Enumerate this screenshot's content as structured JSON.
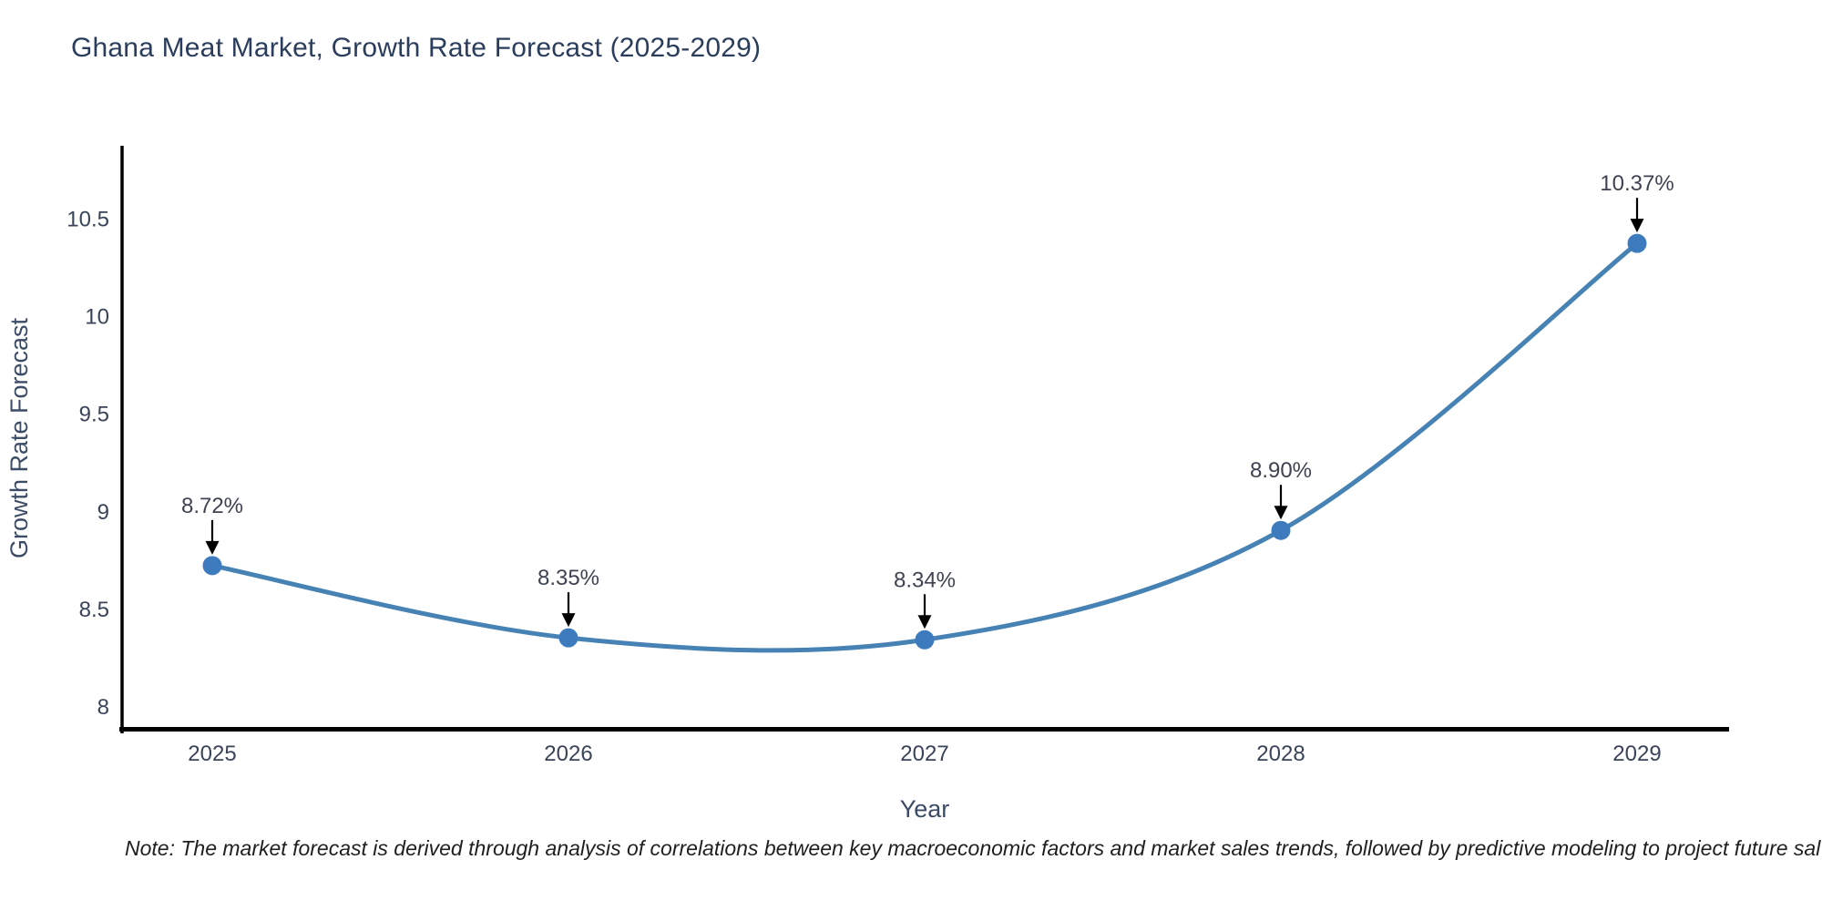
{
  "title": "Ghana Meat Market, Growth Rate Forecast (2025-2029)",
  "note": "Note: The market forecast is derived through analysis of correlations between key macroeconomic factors and market sales trends, followed by predictive modeling to project future sal",
  "chart_data": {
    "type": "line",
    "line_shape": "spline",
    "title": "Ghana Meat Market, Growth Rate Forecast (2025-2029)",
    "xlabel": "Year",
    "ylabel": "Growth Rate Forecast",
    "categories": [
      "2025",
      "2026",
      "2027",
      "2028",
      "2029"
    ],
    "series": [
      {
        "name": "Growth Rate Forecast",
        "values": [
          8.72,
          8.35,
          8.34,
          8.9,
          10.37
        ]
      }
    ],
    "point_labels": [
      "8.72%",
      "8.35%",
      "8.34%",
      "8.90%",
      "10.37%"
    ],
    "ytick_values": [
      8,
      8.5,
      9,
      9.5,
      10,
      10.5
    ],
    "ytick_labels": [
      "8",
      "8.5",
      "9",
      "9.5",
      "10",
      "10.5"
    ],
    "ylim": [
      7.87,
      10.87
    ],
    "grid": false,
    "legend_visible": false,
    "colors": {
      "line": "#4682b4",
      "marker": "#3d7bbe",
      "axis": "#000000",
      "tick_label": "#3a4458",
      "axis_title": "#3d4c66",
      "title": "#2b3d5c",
      "annotation_text": "#3d4350",
      "annotation_arrow": "#000000",
      "background": "#ffffff"
    }
  }
}
